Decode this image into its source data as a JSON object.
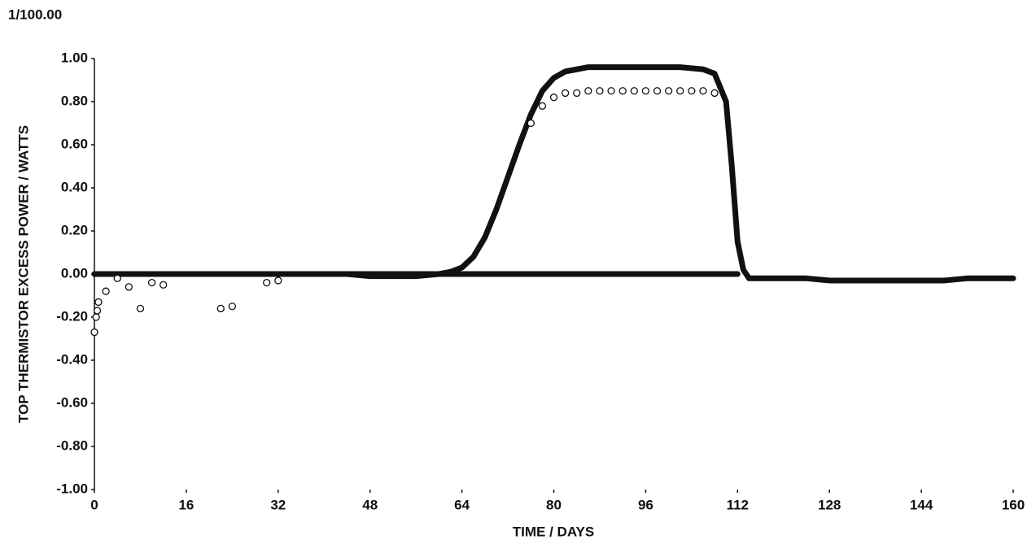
{
  "chart_data": {
    "type": "scatter",
    "corner_label": "1/100.00",
    "ylabel": "TOP THERMISTOR EXCESS POWER  / WATTS",
    "xlabel": "TIME / DAYS",
    "xlim": [
      0,
      160
    ],
    "ylim": [
      -1,
      1
    ],
    "xticks": [
      0,
      16,
      32,
      48,
      64,
      80,
      96,
      112,
      128,
      144,
      160
    ],
    "yticks": [
      {
        "value": 1,
        "label": "1.00"
      },
      {
        "value": 0.8,
        "label": "0.80"
      },
      {
        "value": 0.6,
        "label": "0.60"
      },
      {
        "value": 0.4,
        "label": "0.40"
      },
      {
        "value": 0.2,
        "label": "0.20"
      },
      {
        "value": 0,
        "label": "0.00"
      },
      {
        "value": -0.2,
        "label": "-0.20"
      },
      {
        "value": -0.4,
        "label": "-0.40"
      },
      {
        "value": -0.6,
        "label": "-0.60"
      },
      {
        "value": -0.8,
        "label": "-0.80"
      },
      {
        "value": -1,
        "label": "-1.00"
      }
    ],
    "grid": false,
    "series": [
      {
        "style": "line",
        "color": "#111111",
        "x": [
          0,
          4,
          8,
          12,
          16,
          20,
          24,
          28,
          32,
          36,
          40,
          44,
          48,
          52,
          56,
          60,
          62,
          64,
          66,
          68,
          70,
          72,
          74,
          76,
          78,
          80,
          82,
          84,
          86,
          90,
          94,
          98,
          102,
          106,
          108,
          110,
          111,
          112,
          113,
          114,
          116,
          120,
          124,
          128,
          132,
          136,
          140,
          144,
          148,
          152,
          156,
          160
        ],
        "values": [
          0,
          0,
          0,
          0,
          0,
          0,
          0,
          0,
          0,
          0,
          0,
          0,
          -0.01,
          -0.01,
          -0.01,
          0,
          0.01,
          0.03,
          0.08,
          0.17,
          0.3,
          0.45,
          0.6,
          0.74,
          0.85,
          0.91,
          0.94,
          0.95,
          0.96,
          0.96,
          0.96,
          0.96,
          0.96,
          0.95,
          0.93,
          0.8,
          0.5,
          0.15,
          0.02,
          -0.02,
          -0.02,
          -0.02,
          -0.02,
          -0.03,
          -0.03,
          -0.03,
          -0.03,
          -0.03,
          -0.03,
          -0.02,
          -0.02,
          -0.02
        ]
      },
      {
        "style": "line",
        "color": "#111111",
        "x": [
          0,
          112
        ],
        "values": [
          0,
          0
        ]
      },
      {
        "style": "markers",
        "color": "#111111",
        "x": [
          76,
          78,
          80,
          82,
          84,
          86,
          88,
          90,
          92,
          94,
          96,
          98,
          100,
          102,
          104,
          106,
          108
        ],
        "values": [
          0.7,
          0.78,
          0.82,
          0.84,
          0.84,
          0.85,
          0.85,
          0.85,
          0.85,
          0.85,
          0.85,
          0.85,
          0.85,
          0.85,
          0.85,
          0.85,
          0.84
        ]
      },
      {
        "style": "markers",
        "color": "#111111",
        "x": [
          0,
          0.3,
          0.5,
          0.7,
          2,
          4,
          6,
          8,
          10,
          12,
          22,
          24,
          30,
          32
        ],
        "values": [
          -0.27,
          -0.2,
          -0.17,
          -0.13,
          -0.08,
          -0.02,
          -0.06,
          -0.16,
          -0.04,
          -0.05,
          -0.16,
          -0.15,
          -0.04,
          -0.03
        ]
      }
    ]
  }
}
